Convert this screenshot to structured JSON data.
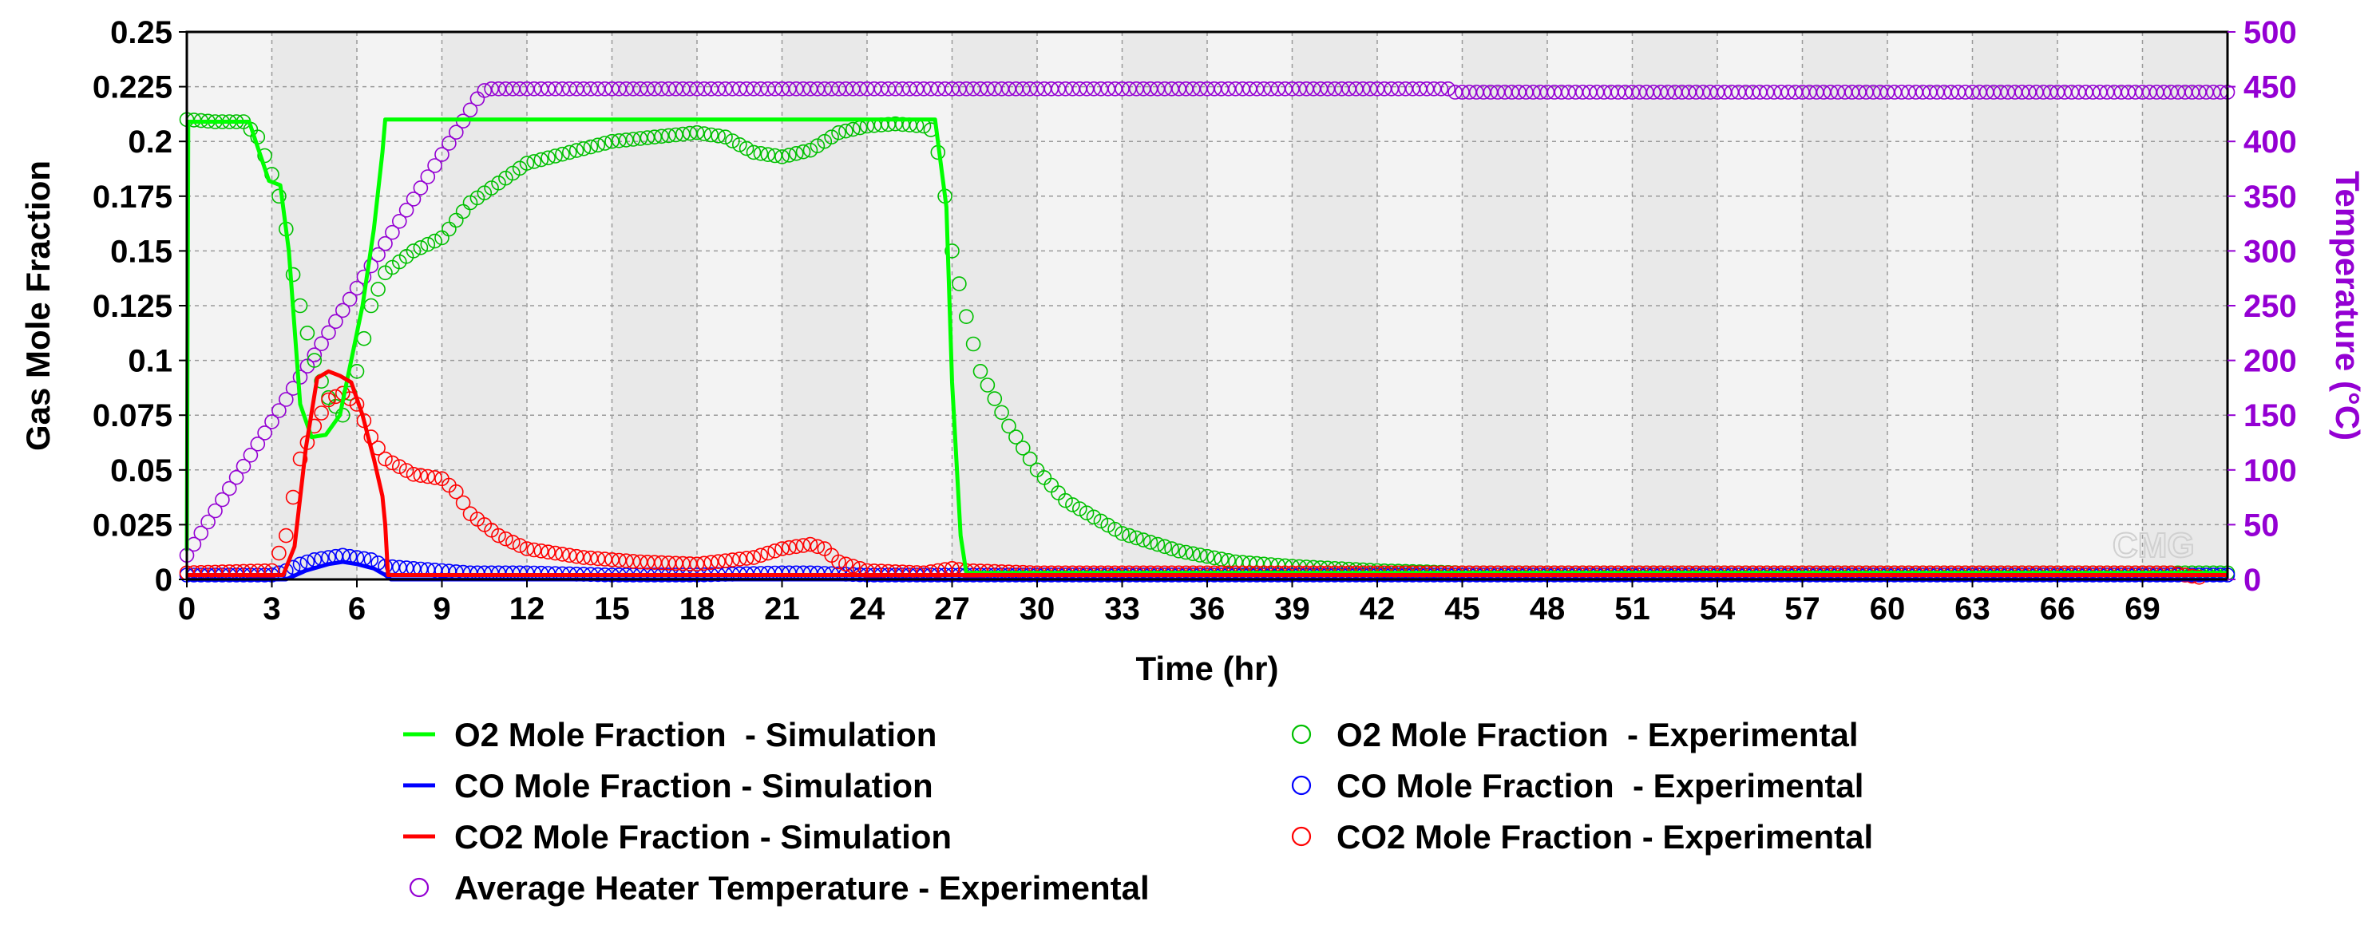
{
  "chart_data": {
    "type": "line",
    "title": "",
    "xlabel": "Time (hr)",
    "ylabel": "Gas Mole Fraction",
    "y2label": "Temperature (°C)",
    "xlim": [
      0,
      72
    ],
    "ylim": [
      0,
      0.25
    ],
    "y2lim": [
      0,
      500
    ],
    "grid": true,
    "legend_position": "bottom",
    "watermark": "CMG",
    "x_ticks": [
      "0",
      "3",
      "6",
      "9",
      "12",
      "15",
      "18",
      "21",
      "24",
      "27",
      "30",
      "33",
      "36",
      "39",
      "42",
      "45",
      "48",
      "51",
      "54",
      "57",
      "60",
      "63",
      "66",
      "69"
    ],
    "y_ticks": [
      "0",
      "0.025",
      "0.05",
      "0.075",
      "0.1",
      "0.125",
      "0.15",
      "0.175",
      "0.2",
      "0.225",
      "0.25"
    ],
    "y2_ticks": [
      "0",
      "50",
      "100",
      "150",
      "200",
      "250",
      "300",
      "350",
      "400",
      "450",
      "500"
    ],
    "series": [
      {
        "name": "O2 Mole Fraction  - Simulation",
        "style": "line",
        "axis": "left",
        "color": "#00FF00",
        "x": [
          0,
          0.05,
          2.2,
          2.9,
          3.3,
          3.6,
          4.0,
          4.4,
          4.9,
          5.4,
          5.8,
          6.2,
          6.6,
          6.9,
          7.0,
          7.1,
          26.4,
          26.8,
          27.0,
          27.3,
          27.5,
          72
        ],
        "y": [
          0.013,
          0.209,
          0.209,
          0.182,
          0.18,
          0.15,
          0.08,
          0.065,
          0.066,
          0.075,
          0.1,
          0.125,
          0.16,
          0.195,
          0.21,
          0.21,
          0.21,
          0.17,
          0.09,
          0.02,
          0.003,
          0.003
        ]
      },
      {
        "name": "CO Mole Fraction - Simulation",
        "style": "line",
        "axis": "left",
        "color": "#0000FF",
        "x": [
          0,
          3.5,
          4.2,
          5.0,
          5.5,
          6.0,
          6.6,
          7.0,
          7.2,
          72
        ],
        "y": [
          0,
          0,
          0.004,
          0.007,
          0.008,
          0.007,
          0.005,
          0.002,
          0,
          0
        ]
      },
      {
        "name": "CO2 Mole Fraction - Simulation",
        "style": "line",
        "axis": "left",
        "color": "#FF0000",
        "x": [
          0,
          3.4,
          3.8,
          4.2,
          4.6,
          5.0,
          5.4,
          5.8,
          6.2,
          6.6,
          6.9,
          7.0,
          7.1,
          72
        ],
        "y": [
          0.002,
          0.002,
          0.015,
          0.06,
          0.092,
          0.095,
          0.093,
          0.09,
          0.075,
          0.055,
          0.038,
          0.025,
          0.002,
          0.002
        ]
      },
      {
        "name": "O2 Mole Fraction  - Experimental",
        "style": "markers",
        "axis": "left",
        "color": "#00C000",
        "x": [
          0,
          1,
          2,
          2.5,
          3,
          3.2,
          3.5,
          3.8,
          4.2,
          4.6,
          5,
          5.5,
          6,
          6.5,
          7,
          8,
          9,
          10,
          12,
          15,
          18,
          19,
          20,
          21,
          22,
          23,
          24,
          25,
          26,
          26.3,
          26.6,
          27,
          27.5,
          28,
          29,
          30,
          31,
          33,
          35,
          37,
          39,
          42,
          45,
          72
        ],
        "y": [
          0.21,
          0.209,
          0.209,
          0.202,
          0.185,
          0.178,
          0.16,
          0.135,
          0.115,
          0.095,
          0.083,
          0.075,
          0.095,
          0.125,
          0.14,
          0.15,
          0.156,
          0.172,
          0.19,
          0.2,
          0.204,
          0.202,
          0.195,
          0.193,
          0.196,
          0.204,
          0.207,
          0.208,
          0.207,
          0.205,
          0.19,
          0.15,
          0.12,
          0.095,
          0.07,
          0.05,
          0.036,
          0.021,
          0.013,
          0.008,
          0.006,
          0.004,
          0.003,
          0.003
        ]
      },
      {
        "name": "CO Mole Fraction  - Experimental",
        "style": "markers",
        "axis": "left",
        "color": "#0000FF",
        "x": [
          0,
          3,
          3.5,
          4,
          4.5,
          5,
          5.5,
          6,
          6.5,
          7,
          8,
          9,
          10,
          12,
          15,
          18,
          21,
          22,
          24,
          72
        ],
        "y": [
          0.002,
          0.002,
          0.004,
          0.007,
          0.009,
          0.01,
          0.011,
          0.01,
          0.009,
          0.006,
          0.005,
          0.004,
          0.003,
          0.003,
          0.002,
          0.002,
          0.003,
          0.003,
          0.002,
          0.002
        ]
      },
      {
        "name": "CO2 Mole Fraction - Experimental",
        "style": "markers",
        "axis": "left",
        "color": "#FF0000",
        "x": [
          0,
          3,
          3.5,
          4,
          4.5,
          5,
          5.5,
          6,
          6.5,
          7,
          8,
          9,
          9.5,
          10,
          11,
          12,
          14,
          16,
          18,
          20,
          21,
          22,
          22.5,
          23,
          24,
          26,
          27,
          27.5,
          30,
          40,
          50,
          60,
          70,
          71
        ],
        "y": [
          0.003,
          0.004,
          0.02,
          0.055,
          0.07,
          0.082,
          0.085,
          0.08,
          0.065,
          0.055,
          0.048,
          0.046,
          0.04,
          0.03,
          0.02,
          0.014,
          0.01,
          0.008,
          0.007,
          0.01,
          0.014,
          0.016,
          0.014,
          0.008,
          0.004,
          0.003,
          0.005,
          0.004,
          0.003,
          0.003,
          0.003,
          0.003,
          0.003,
          0.001
        ]
      },
      {
        "name": "Average Heater Temperature - Experimental",
        "style": "markers",
        "axis": "right",
        "color": "#9400D3",
        "x": [
          0,
          10.4,
          10.6,
          44.5,
          44.7,
          72
        ],
        "y": [
          22,
          445,
          448,
          448,
          445,
          445
        ]
      }
    ]
  }
}
